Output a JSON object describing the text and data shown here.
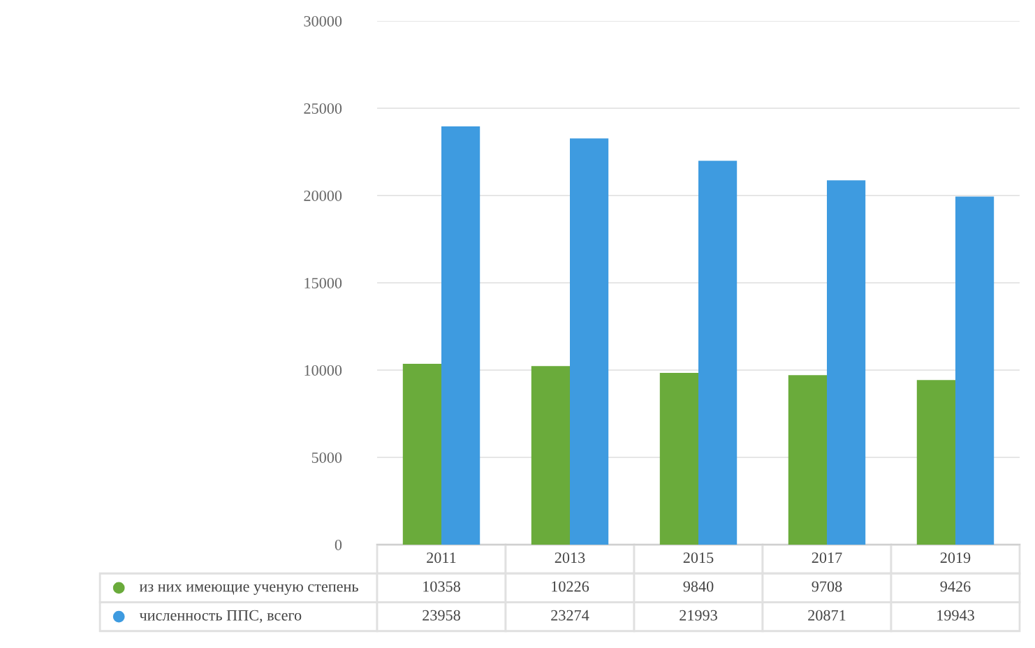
{
  "chart_data": {
    "type": "bar",
    "categories": [
      "2011",
      "2013",
      "2015",
      "2017",
      "2019"
    ],
    "series": [
      {
        "name": "из них имеющие ученую степень",
        "color": "#6aab3b",
        "values": [
          10358,
          10226,
          9840,
          9708,
          9426
        ]
      },
      {
        "name": "численность ППС, всего",
        "color": "#3e9be0",
        "values": [
          23958,
          23274,
          21993,
          20871,
          19943
        ]
      }
    ],
    "ylim": [
      0,
      30000
    ],
    "yticks": [
      0,
      5000,
      10000,
      15000,
      20000,
      25000,
      30000
    ],
    "grid": "y",
    "data_labels": true,
    "legend": "bottom left"
  }
}
